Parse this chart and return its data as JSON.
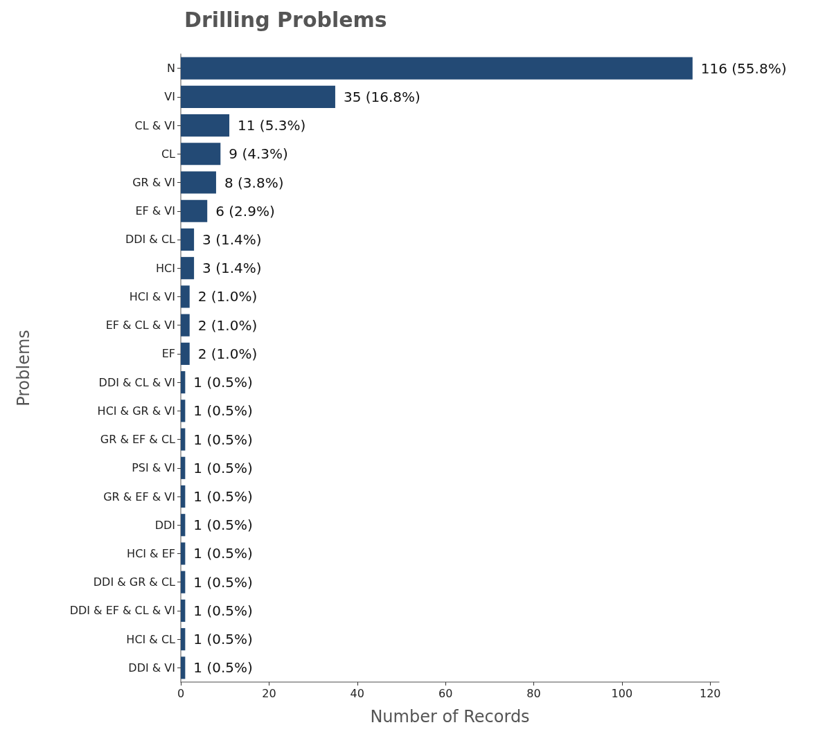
{
  "chart_data": {
    "type": "bar",
    "orientation": "horizontal",
    "title": "Drilling Problems",
    "xlabel": "Number of Records",
    "ylabel": "Problems",
    "categories": [
      "N",
      "VI",
      "CL & VI",
      "CL",
      "GR & VI",
      "EF & VI",
      "DDI & CL",
      "HCI",
      "HCI & VI",
      "EF & CL & VI",
      "EF",
      "DDI & CL & VI",
      "HCI & GR & VI",
      "GR & EF & CL",
      "PSI & VI",
      "GR & EF & VI",
      "DDI",
      "HCI & EF",
      "DDI & GR & CL",
      "DDI & EF & CL & VI",
      "HCI & CL",
      "DDI & VI"
    ],
    "values": [
      116,
      35,
      11,
      9,
      8,
      6,
      3,
      3,
      2,
      2,
      2,
      1,
      1,
      1,
      1,
      1,
      1,
      1,
      1,
      1,
      1,
      1
    ],
    "value_labels": [
      "116 (55.8%)",
      "35 (16.8%)",
      "11 (5.3%)",
      "9 (4.3%)",
      "8 (3.8%)",
      "6 (2.9%)",
      "3 (1.4%)",
      "3 (1.4%)",
      "2 (1.0%)",
      "2 (1.0%)",
      "2 (1.0%)",
      "1 (0.5%)",
      "1 (0.5%)",
      "1 (0.5%)",
      "1 (0.5%)",
      "1 (0.5%)",
      "1 (0.5%)",
      "1 (0.5%)",
      "1 (0.5%)",
      "1 (0.5%)",
      "1 (0.5%)",
      "1 (0.5%)"
    ],
    "color": "#234a75",
    "xlim": [
      0,
      122
    ],
    "xticks": [
      0,
      20,
      40,
      60,
      80,
      100,
      120
    ],
    "grid": false
  }
}
